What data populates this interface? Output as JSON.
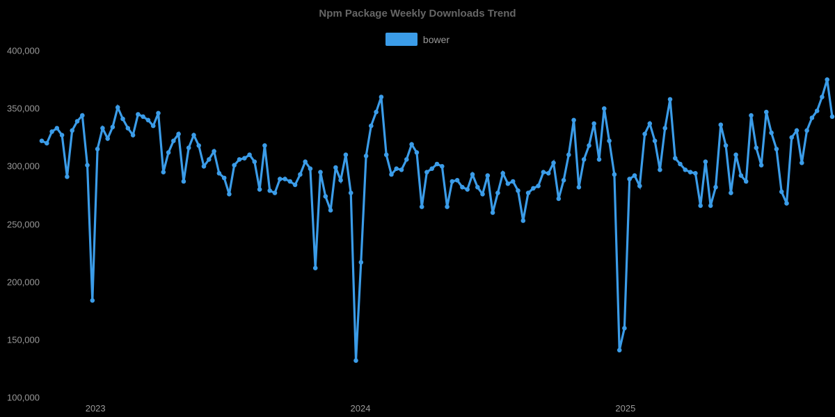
{
  "title": "Npm Package Weekly Downloads Trend",
  "legend": {
    "items": [
      {
        "label": "bower",
        "color": "#3b9ce8"
      }
    ]
  },
  "colors": {
    "background": "#000000",
    "title_text": "#666666",
    "legend_text": "#999999",
    "axis_text": "#999999",
    "series_line": "#3b9ce8"
  },
  "chart_data": {
    "type": "line",
    "title": "Npm Package Weekly Downloads Trend",
    "legend_position": "top",
    "grid": false,
    "marker": "circle",
    "x_axis": {
      "unit": "week",
      "tick_labels": [
        "2023",
        "2024",
        "2025"
      ],
      "tick_indices": [
        10.6,
        62.9,
        115.2
      ]
    },
    "y_axis": {
      "min": 100000,
      "max": 400000,
      "step": 50000,
      "tick_labels": [
        "400,000",
        "350,000",
        "300,000",
        "250,000",
        "200,000",
        "150,000",
        "100,000"
      ]
    },
    "series": [
      {
        "name": "bower",
        "color": "#3b9ce8",
        "values": [
          322000,
          320000,
          330000,
          333000,
          327000,
          291000,
          331000,
          339000,
          344000,
          301000,
          184000,
          315000,
          333000,
          324000,
          334000,
          351000,
          341000,
          333000,
          327000,
          345000,
          343000,
          340000,
          335000,
          346000,
          295000,
          312000,
          322000,
          328000,
          287000,
          316000,
          327000,
          318000,
          300000,
          306000,
          313000,
          294000,
          290000,
          276000,
          301000,
          306000,
          307000,
          310000,
          304000,
          280000,
          318000,
          279000,
          277000,
          289000,
          289000,
          287000,
          284000,
          293000,
          304000,
          298000,
          212000,
          295000,
          274000,
          262000,
          299000,
          288000,
          310000,
          277000,
          132000,
          217000,
          309000,
          335000,
          347000,
          360000,
          310000,
          293000,
          298000,
          297000,
          306000,
          319000,
          312000,
          265000,
          295000,
          298000,
          302000,
          300000,
          265000,
          287000,
          288000,
          282000,
          280000,
          293000,
          282000,
          276000,
          292000,
          260000,
          277000,
          294000,
          285000,
          287000,
          279000,
          253000,
          277000,
          281000,
          283000,
          295000,
          294000,
          303000,
          272000,
          288000,
          310000,
          340000,
          282000,
          306000,
          318000,
          337000,
          306000,
          350000,
          322000,
          293000,
          141000,
          160000,
          289000,
          292000,
          283000,
          328000,
          337000,
          322000,
          297000,
          333000,
          358000,
          307000,
          302000,
          297000,
          295000,
          294000,
          266000,
          304000,
          266000,
          282000,
          336000,
          318000,
          277000,
          310000,
          292000,
          287000,
          344000,
          316000,
          301000,
          347000,
          329000,
          315000,
          278000,
          268000,
          325000,
          331000,
          303000,
          331000,
          342000,
          348000,
          360000,
          375000,
          343000
        ]
      }
    ]
  }
}
